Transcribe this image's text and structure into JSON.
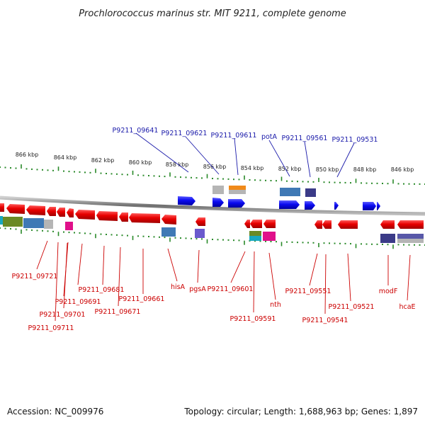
{
  "title": "Prochlorococcus marinus str. MIT 9211, complete genome",
  "footer": {
    "accession": "Accession: NC_009976",
    "topology": "Topology: circular; Length: 1,688,963 bp; Genes: 1,897"
  },
  "kbp_labels": [
    "866 kbp",
    "864 kbp",
    "862 kbp",
    "860 kbp",
    "858 kbp",
    "856 kbp",
    "854 kbp",
    "852 kbp",
    "850 kbp",
    "848 kbp",
    "846 kbp"
  ],
  "top_labels": [
    "P9211_09641",
    "P9211_09621",
    "P9211_09611",
    "potA",
    "P9211_09561",
    "P9211_09531"
  ],
  "bottom_labels": [
    "P9211_09721",
    "P9211_09691",
    "P9211_09681",
    "P9211_09701",
    "P9211_09671",
    "P9211_09711",
    "P9211_09661",
    "hisA",
    "pgsA",
    "P9211_09601",
    "P9211_09591",
    "nth",
    "P9211_09551",
    "P9211_09541",
    "P9211_09521",
    "modF",
    "hcaE"
  ],
  "colors": {
    "forward_gene": "#1a1aee",
    "reverse_gene": "#ee1111",
    "top_label": "#1a1aaa",
    "bottom_label": "#cc0000",
    "tick": "#2a8a2a",
    "backbone": "#888888"
  }
}
